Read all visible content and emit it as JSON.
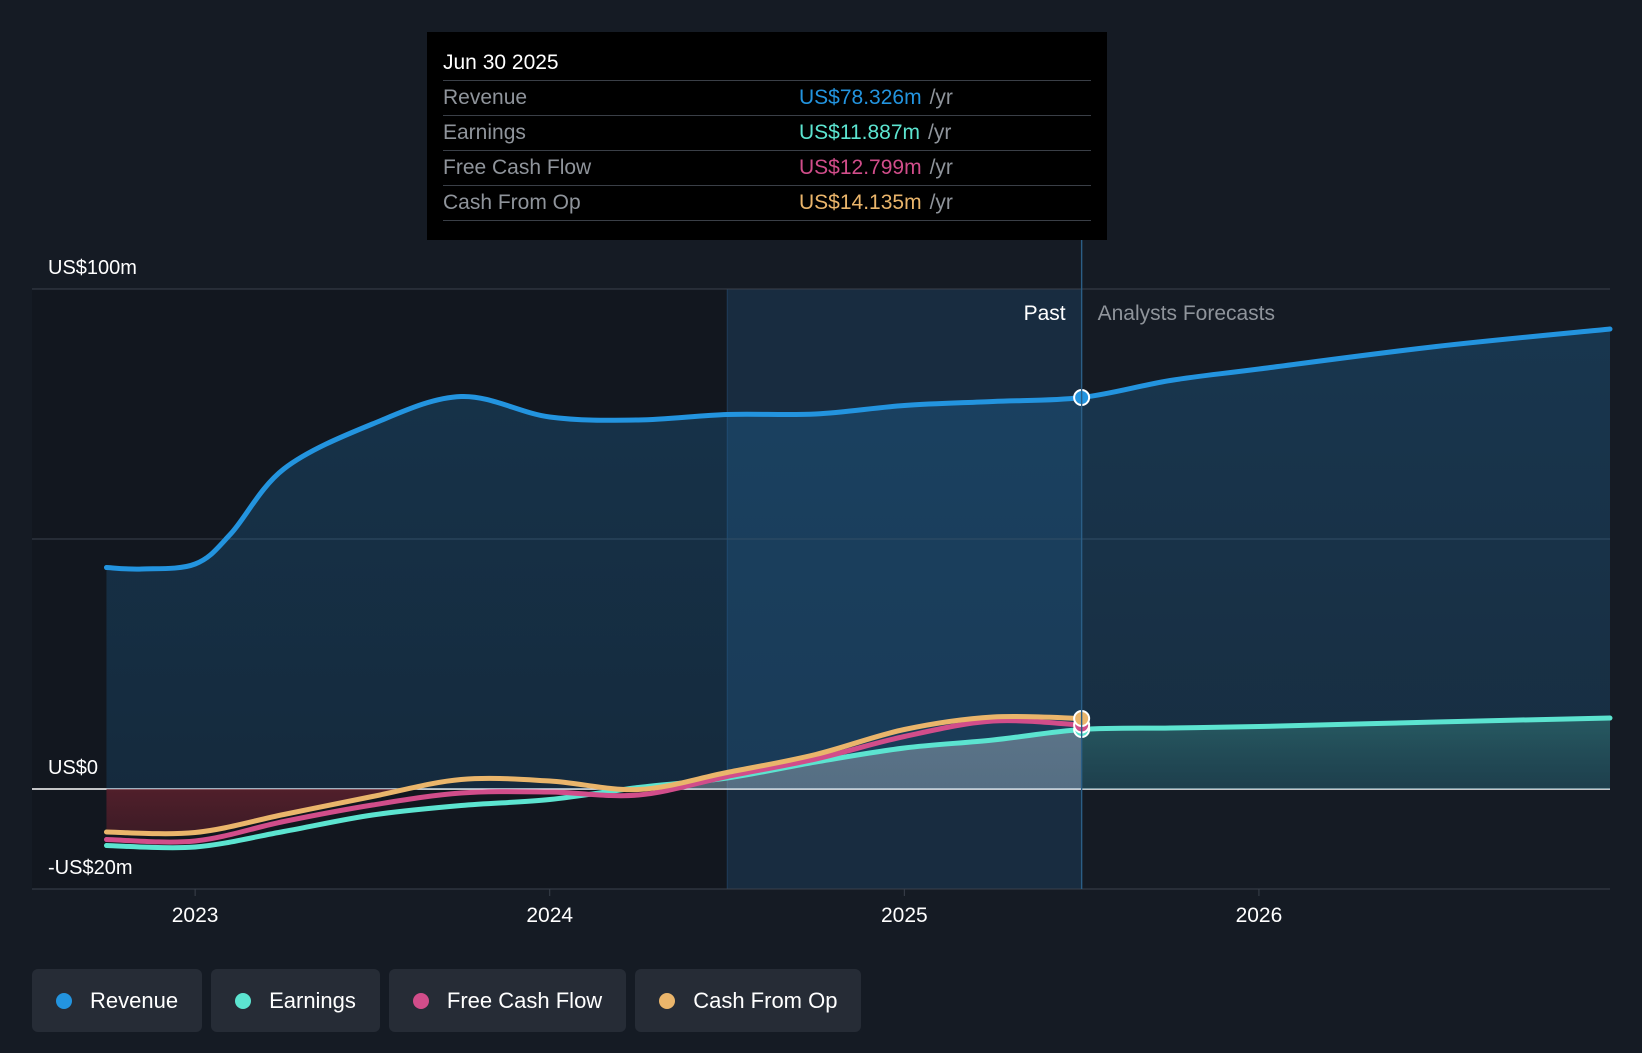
{
  "tooltip": {
    "date": "Jun 30 2025",
    "rows": [
      {
        "label": "Revenue",
        "value": "US$78.326m",
        "unit": "/yr",
        "color": "#2394df"
      },
      {
        "label": "Earnings",
        "value": "US$11.887m",
        "unit": "/yr",
        "color": "#5ce4d0"
      },
      {
        "label": "Free Cash Flow",
        "value": "US$12.799m",
        "unit": "/yr",
        "color": "#d14d8a"
      },
      {
        "label": "Cash From Op",
        "value": "US$14.135m",
        "unit": "/yr",
        "color": "#eab56b"
      }
    ]
  },
  "region_labels": {
    "past": "Past",
    "forecast": "Analysts Forecasts"
  },
  "legend": [
    {
      "label": "Revenue",
      "color": "#2394df"
    },
    {
      "label": "Earnings",
      "color": "#5ce4d0"
    },
    {
      "label": "Free Cash Flow",
      "color": "#d14d8a"
    },
    {
      "label": "Cash From Op",
      "color": "#eab56b"
    }
  ],
  "chart_data": {
    "type": "line",
    "title": "",
    "xlabel": "",
    "ylabel": "",
    "unit": "US$ millions",
    "ylim": [
      -20,
      100
    ],
    "xlim": [
      2022.54,
      2026.99
    ],
    "y_tick_labels": [
      {
        "value": 100,
        "label": "US$100m"
      },
      {
        "value": 0,
        "label": "US$0"
      },
      {
        "value": -20,
        "label": "-US$20m"
      }
    ],
    "x_tick_labels": [
      {
        "value": 2023.0,
        "label": "2023"
      },
      {
        "value": 2024.0,
        "label": "2024"
      },
      {
        "value": 2025.0,
        "label": "2025"
      },
      {
        "value": 2026.0,
        "label": "2026"
      }
    ],
    "gridlines_y": [
      100,
      50,
      0,
      -20
    ],
    "past_shade_start": 2024.5,
    "past_end": 2025.5,
    "grid": true,
    "legend_position": "bottom",
    "series": [
      {
        "name": "Revenue",
        "color": "#2394df",
        "filled": true,
        "points": [
          [
            2022.75,
            44.3
          ],
          [
            2022.85,
            44.0
          ],
          [
            2023.0,
            45.0
          ],
          [
            2023.1,
            51
          ],
          [
            2023.25,
            64.0
          ],
          [
            2023.5,
            73.0
          ],
          [
            2023.75,
            78.5
          ],
          [
            2024.0,
            74.4
          ],
          [
            2024.25,
            73.8
          ],
          [
            2024.5,
            74.9
          ],
          [
            2024.75,
            75.0
          ],
          [
            2025.0,
            76.7
          ],
          [
            2025.25,
            77.5
          ],
          [
            2025.5,
            78.3
          ],
          [
            2025.75,
            81.7
          ],
          [
            2026.0,
            84.0
          ],
          [
            2026.5,
            88.5
          ],
          [
            2026.99,
            92.0
          ]
        ]
      },
      {
        "name": "Earnings",
        "color": "#5ce4d0",
        "filled": true,
        "points": [
          [
            2022.75,
            -11.3
          ],
          [
            2023.0,
            -11.6
          ],
          [
            2023.25,
            -8.5
          ],
          [
            2023.5,
            -5.2
          ],
          [
            2023.75,
            -3.3
          ],
          [
            2024.0,
            -2.1
          ],
          [
            2024.25,
            0.3
          ],
          [
            2024.5,
            2.2
          ],
          [
            2024.75,
            5.4
          ],
          [
            2025.0,
            8.2
          ],
          [
            2025.25,
            9.8
          ],
          [
            2025.5,
            11.9
          ],
          [
            2025.75,
            12.2
          ],
          [
            2026.0,
            12.5
          ],
          [
            2026.5,
            13.4
          ],
          [
            2026.99,
            14.2
          ]
        ]
      },
      {
        "name": "Free Cash Flow",
        "color": "#d14d8a",
        "filled": false,
        "points": [
          [
            2022.75,
            -10.1
          ],
          [
            2023.0,
            -10.4
          ],
          [
            2023.25,
            -6.5
          ],
          [
            2023.5,
            -3.2
          ],
          [
            2023.75,
            -0.8
          ],
          [
            2024.0,
            -0.6
          ],
          [
            2024.25,
            -1.2
          ],
          [
            2024.5,
            2.5
          ],
          [
            2024.75,
            6.0
          ],
          [
            2025.0,
            10.5
          ],
          [
            2025.25,
            13.6
          ],
          [
            2025.5,
            12.8
          ]
        ]
      },
      {
        "name": "Cash From Op",
        "color": "#eab56b",
        "filled": false,
        "points": [
          [
            2022.75,
            -8.6
          ],
          [
            2023.0,
            -8.7
          ],
          [
            2023.25,
            -5.1
          ],
          [
            2023.5,
            -1.5
          ],
          [
            2023.75,
            1.9
          ],
          [
            2024.0,
            1.6
          ],
          [
            2024.25,
            -0.1
          ],
          [
            2024.5,
            3.3
          ],
          [
            2024.75,
            6.9
          ],
          [
            2025.0,
            11.9
          ],
          [
            2025.25,
            14.4
          ],
          [
            2025.5,
            14.1
          ]
        ]
      }
    ]
  }
}
